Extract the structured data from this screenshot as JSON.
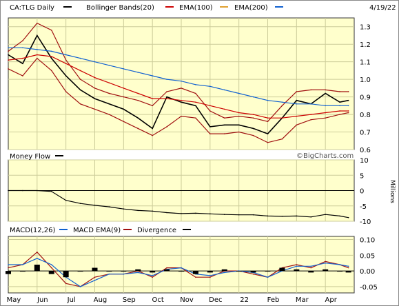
{
  "chart_data": [
    {
      "type": "line",
      "title": "CA:TLG Daily",
      "date": "4/19/22",
      "legend": [
        {
          "name": "CA:TLG Daily",
          "color": "#000000"
        },
        {
          "name": "Bollinger Bands(20)",
          "color": "#000000"
        },
        {
          "name": "EMA(100)",
          "color": "#cc0000"
        },
        {
          "name": "EMA(200)",
          "color": "#e0a030"
        },
        {
          "name": "",
          "color": "#1060d0"
        }
      ],
      "y_ticks": [
        "1.3",
        "1.2",
        "1.1",
        "1.0",
        "0.9",
        "0.8",
        "0.7",
        "0.6"
      ],
      "ylim": [
        0.6,
        1.35
      ],
      "x": [
        0,
        0.5,
        1,
        1.5,
        2,
        2.5,
        3,
        3.5,
        4,
        4.5,
        5,
        5.5,
        6,
        6.5,
        7,
        7.5,
        8,
        8.5,
        9,
        9.5,
        10,
        10.5,
        11,
        11.5,
        11.8
      ],
      "series": [
        {
          "name": "CA:TLG Daily",
          "color": "#000000",
          "values": [
            1.14,
            1.09,
            1.25,
            1.12,
            1.02,
            0.94,
            0.89,
            0.86,
            0.83,
            0.78,
            0.72,
            0.9,
            0.87,
            0.85,
            0.73,
            0.74,
            0.74,
            0.72,
            0.69,
            0.78,
            0.88,
            0.86,
            0.92,
            0.87,
            0.88
          ]
        },
        {
          "name": "Bollinger Upper",
          "color": "#a01010",
          "values": [
            1.16,
            1.22,
            1.32,
            1.28,
            1.11,
            1.0,
            0.95,
            0.92,
            0.9,
            0.88,
            0.85,
            0.93,
            0.95,
            0.92,
            0.82,
            0.78,
            0.79,
            0.78,
            0.76,
            0.85,
            0.93,
            0.94,
            0.94,
            0.93,
            0.93
          ]
        },
        {
          "name": "Bollinger Lower",
          "color": "#a01010",
          "values": [
            1.06,
            1.02,
            1.12,
            1.05,
            0.93,
            0.86,
            0.83,
            0.8,
            0.76,
            0.72,
            0.68,
            0.73,
            0.79,
            0.78,
            0.69,
            0.69,
            0.7,
            0.68,
            0.64,
            0.66,
            0.74,
            0.77,
            0.78,
            0.8,
            0.81
          ]
        },
        {
          "name": "EMA(100)",
          "color": "#cc0000",
          "values": [
            1.11,
            1.12,
            1.14,
            1.13,
            1.09,
            1.05,
            1.01,
            0.98,
            0.95,
            0.92,
            0.89,
            0.89,
            0.88,
            0.87,
            0.85,
            0.83,
            0.81,
            0.8,
            0.78,
            0.78,
            0.79,
            0.8,
            0.81,
            0.82,
            0.82
          ]
        },
        {
          "name": "EMA(200)",
          "color": "#1060d0",
          "values": [
            1.18,
            1.18,
            1.17,
            1.16,
            1.14,
            1.12,
            1.1,
            1.08,
            1.06,
            1.04,
            1.02,
            1.0,
            0.99,
            0.97,
            0.96,
            0.94,
            0.92,
            0.9,
            0.88,
            0.87,
            0.86,
            0.86,
            0.85,
            0.85,
            0.85
          ]
        }
      ]
    },
    {
      "type": "line",
      "title": "Money Flow",
      "ylabel": "Millions",
      "y_ticks": [
        "10",
        "5",
        "0",
        "-5",
        "-10"
      ],
      "ylim": [
        -10,
        10
      ],
      "x": [
        0,
        0.5,
        1,
        1.5,
        2,
        2.5,
        3,
        3.5,
        4,
        4.5,
        5,
        5.5,
        6,
        6.5,
        7,
        7.5,
        8,
        8.5,
        9,
        9.5,
        10,
        10.5,
        11,
        11.5,
        11.8
      ],
      "series": [
        {
          "name": "Money Flow",
          "color": "#000000",
          "values": [
            0,
            0,
            0,
            -0.3,
            -3.2,
            -4.2,
            -4.8,
            -5.3,
            -6.0,
            -6.5,
            -6.7,
            -7.2,
            -7.5,
            -7.4,
            -7.6,
            -7.8,
            -7.9,
            -7.9,
            -8.3,
            -8.4,
            -8.3,
            -8.6,
            -7.8,
            -8.3,
            -8.8
          ]
        }
      ]
    },
    {
      "type": "line",
      "title": "MACD",
      "legend": [
        {
          "name": "MACD(12,26)",
          "color": "#000000"
        },
        {
          "name": "MACD EMA(9)",
          "color": "#1060d0"
        },
        {
          "name": "Divergence",
          "color": "#000000"
        }
      ],
      "y_ticks": [
        "0.10",
        "0.05",
        "0.00",
        "-0.05"
      ],
      "ylim": [
        -0.07,
        0.11
      ],
      "x": [
        0,
        0.5,
        1,
        1.5,
        2,
        2.5,
        3,
        3.5,
        4,
        4.5,
        5,
        5.5,
        6,
        6.5,
        7,
        7.5,
        8,
        8.5,
        9,
        9.5,
        10,
        10.5,
        11,
        11.5,
        11.8
      ],
      "series": [
        {
          "name": "MACD(12,26)",
          "color": "#a01010",
          "values": [
            0.01,
            0.02,
            0.06,
            0.01,
            -0.04,
            -0.05,
            -0.02,
            -0.01,
            -0.01,
            0.0,
            -0.02,
            0.01,
            0.01,
            -0.02,
            -0.02,
            0.0,
            0.0,
            -0.01,
            -0.02,
            0.01,
            0.02,
            0.01,
            0.03,
            0.02,
            0.01
          ]
        },
        {
          "name": "MACD EMA(9)",
          "color": "#1060d0",
          "values": [
            0.02,
            0.02,
            0.04,
            0.02,
            -0.02,
            -0.05,
            -0.03,
            -0.01,
            -0.01,
            -0.005,
            -0.015,
            0.005,
            0.01,
            -0.01,
            -0.015,
            -0.005,
            0.0,
            -0.005,
            -0.02,
            0.0,
            0.015,
            0.015,
            0.025,
            0.02,
            0.015
          ]
        },
        {
          "name": "Divergence",
          "color": "#000000",
          "values": [
            -0.01,
            0.0,
            0.02,
            -0.01,
            -0.02,
            0.0,
            0.01,
            0.0,
            0.0,
            0.005,
            -0.005,
            0.005,
            0.0,
            -0.01,
            -0.005,
            0.005,
            0.0,
            -0.005,
            0.0,
            0.01,
            0.005,
            -0.005,
            0.005,
            0.0,
            -0.005
          ]
        }
      ]
    }
  ],
  "x_labels": [
    "May",
    "Jun",
    "Jul",
    "Aug",
    "Sep",
    "Oct",
    "Nov",
    "Dec",
    "22",
    "Feb",
    "Mar",
    "Apr"
  ],
  "watermark": "©BigCharts.com"
}
